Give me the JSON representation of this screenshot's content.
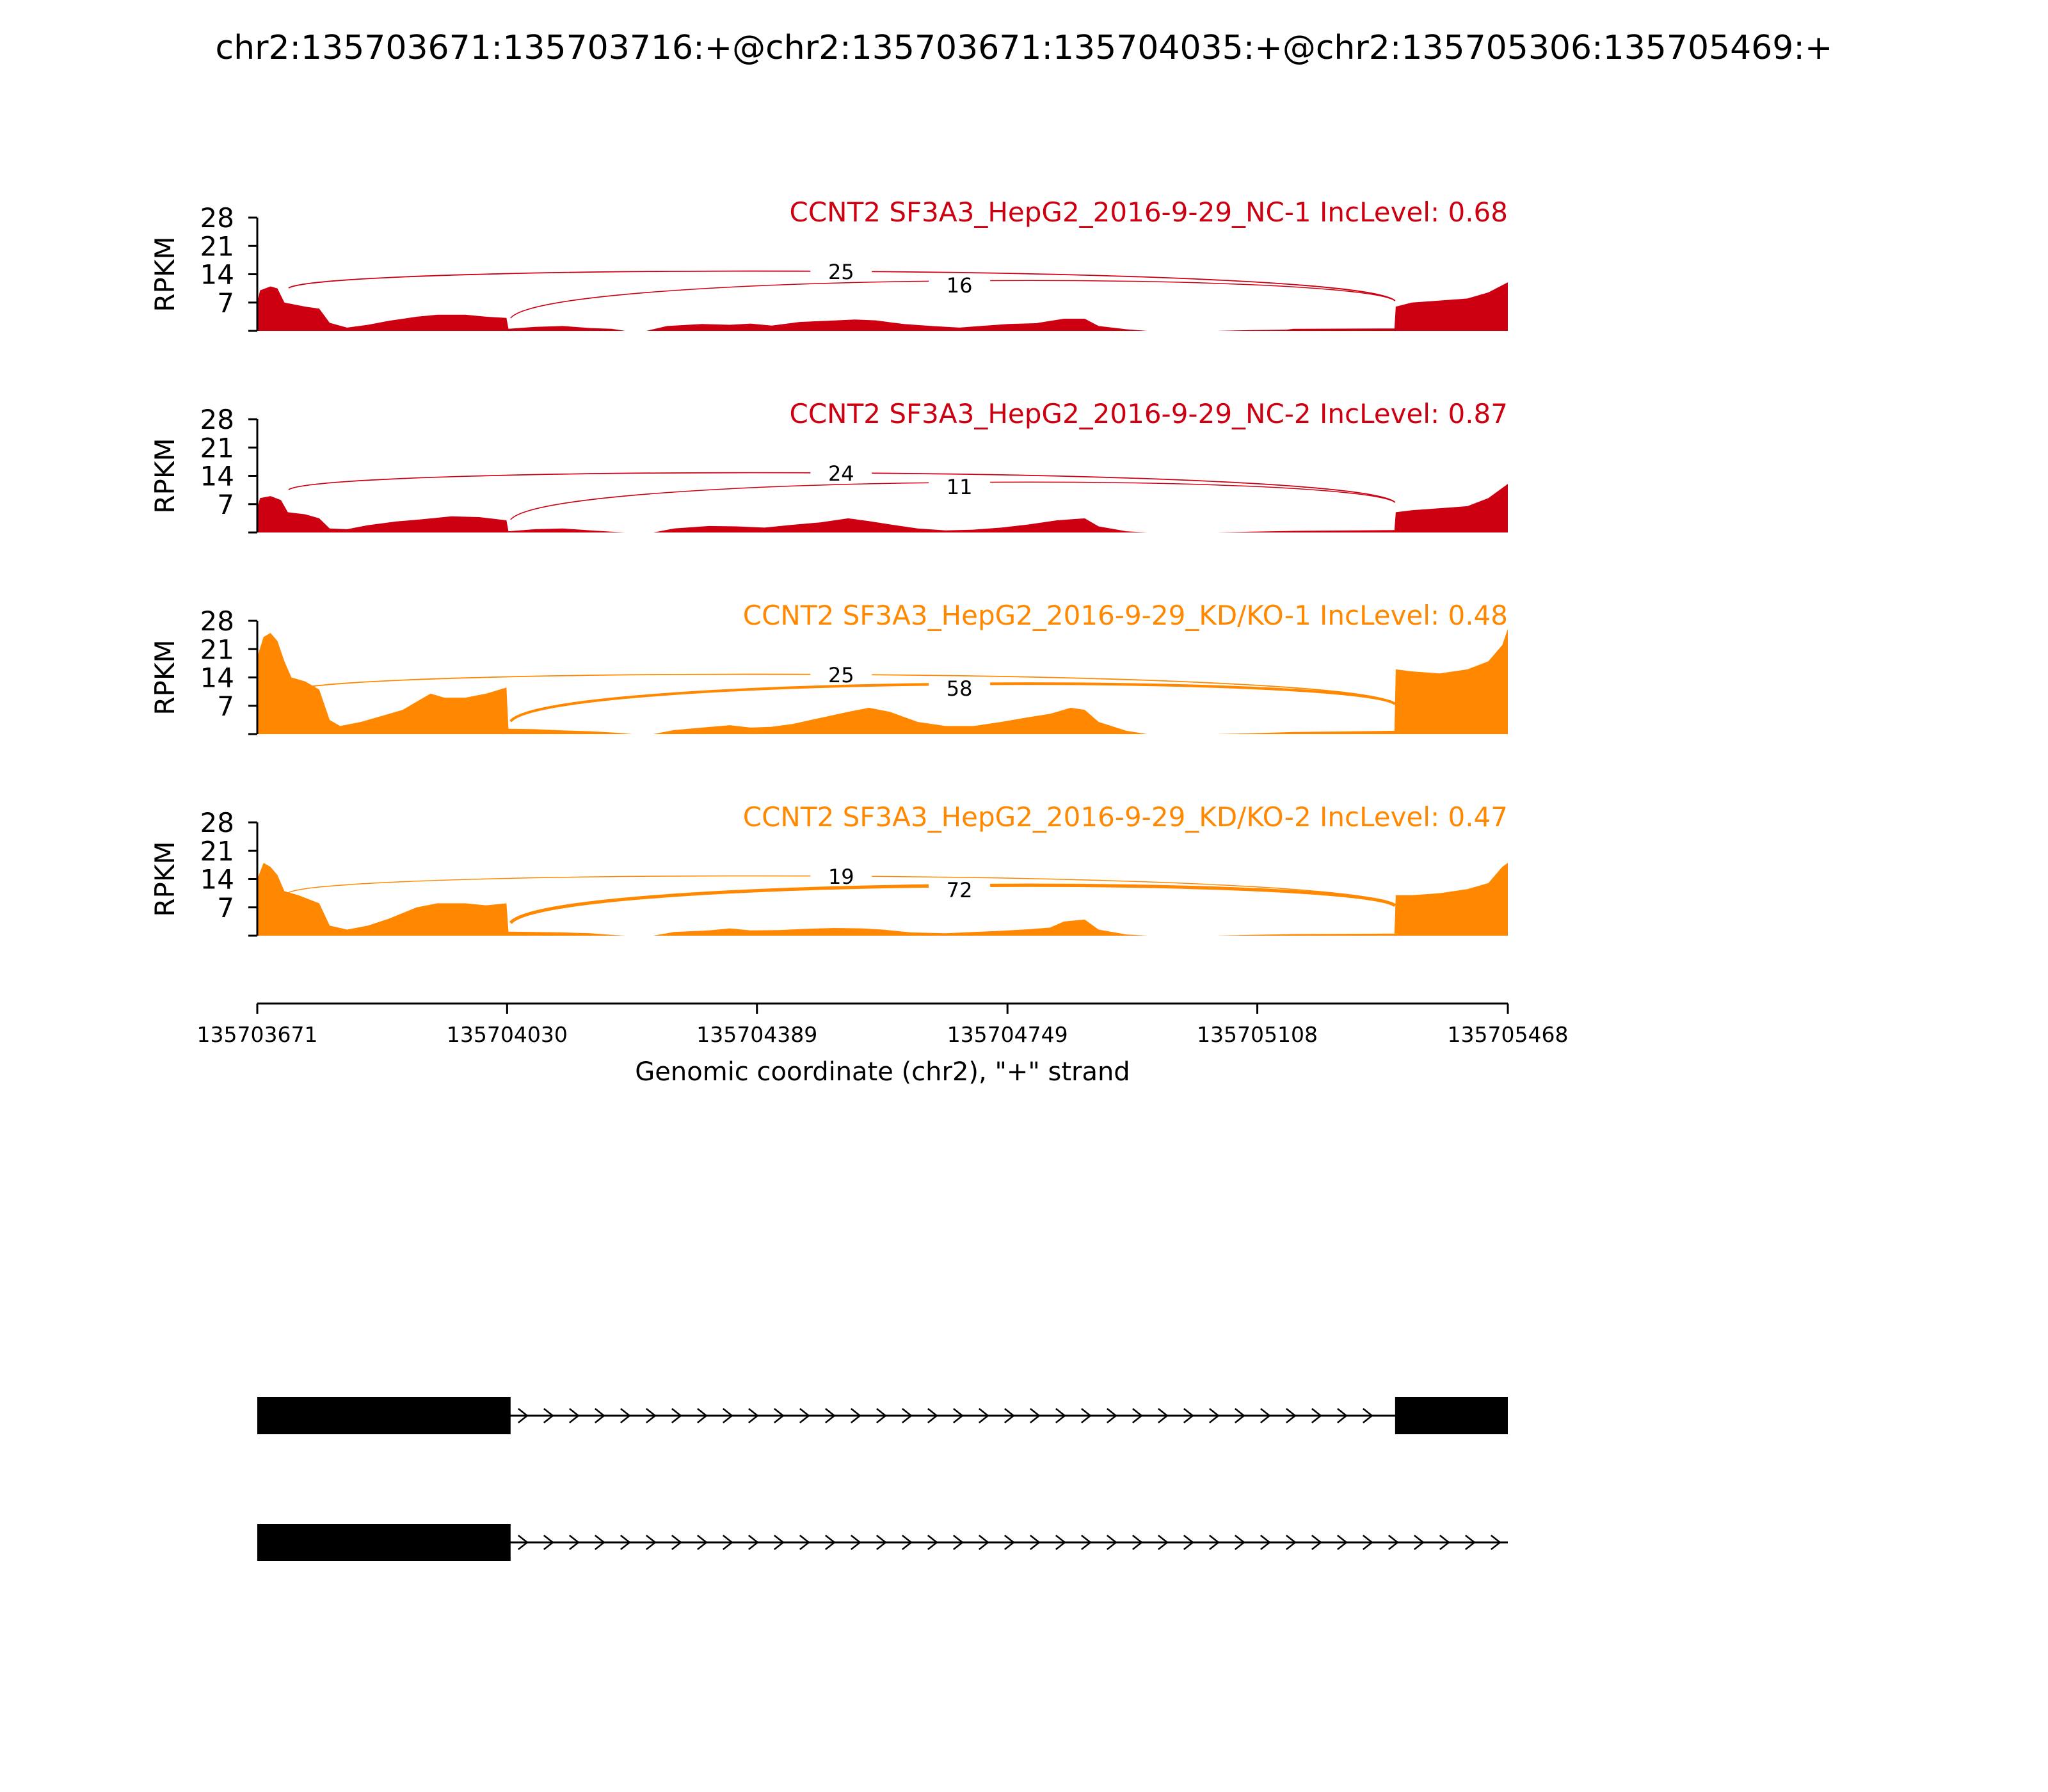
{
  "title": "chr2:135703671:135703716:+@chr2:135703671:135704035:+@chr2:135705306:135705469:+",
  "colors": {
    "nc": "#cc0011",
    "kd": "#ff8800",
    "axis": "#000000",
    "gene": "#000000"
  },
  "chart_data": {
    "type": "area",
    "xlabel": "Genomic coordinate (chr2), \"+\" strand",
    "xlim": [
      135703671,
      135705468
    ],
    "xticks": [
      135703671,
      135704030,
      135704389,
      135704749,
      135705108,
      135705468
    ],
    "xtick_labels": [
      "135703671",
      "135704030",
      "135704389",
      "135704749",
      "135705108",
      "135705468"
    ],
    "ylabel": "RPKM",
    "ylim": [
      0,
      28
    ],
    "yticks": [
      7,
      14,
      21,
      28
    ],
    "ytick_labels": [
      "7",
      "14",
      "21",
      "28"
    ],
    "tracks": [
      {
        "label": "CCNT2 SF3A3_HepG2_2016-9-29_NC-1 IncLevel: 0.68",
        "color_key": "nc",
        "coverage": [
          [
            135703671,
            7
          ],
          [
            135703675,
            10
          ],
          [
            135703690,
            11
          ],
          [
            135703700,
            10.5
          ],
          [
            135703710,
            7
          ],
          [
            135703740,
            6
          ],
          [
            135703760,
            5.5
          ],
          [
            135703775,
            2
          ],
          [
            135703800,
            0.8
          ],
          [
            135703830,
            1.5
          ],
          [
            135703860,
            2.5
          ],
          [
            135703900,
            3.5
          ],
          [
            135703930,
            4
          ],
          [
            135703970,
            4
          ],
          [
            135704000,
            3.5
          ],
          [
            135704029,
            3.2
          ],
          [
            135704032,
            0.5
          ],
          [
            135704070,
            1
          ],
          [
            135704110,
            1.2
          ],
          [
            135704150,
            0.7
          ],
          [
            135704180,
            0.5
          ],
          [
            135704200,
            0
          ],
          [
            135704230,
            0
          ],
          [
            135704260,
            1.2
          ],
          [
            135704310,
            1.7
          ],
          [
            135704350,
            1.5
          ],
          [
            135704380,
            1.8
          ],
          [
            135704410,
            1.3
          ],
          [
            135704450,
            2.2
          ],
          [
            135704490,
            2.5
          ],
          [
            135704530,
            2.8
          ],
          [
            135704560,
            2.6
          ],
          [
            135704600,
            1.7
          ],
          [
            135704640,
            1.2
          ],
          [
            135704680,
            0.8
          ],
          [
            135704710,
            1.2
          ],
          [
            135704750,
            1.7
          ],
          [
            135704790,
            1.9
          ],
          [
            135704830,
            3
          ],
          [
            135704860,
            3
          ],
          [
            135704880,
            1.2
          ],
          [
            135704920,
            0.4
          ],
          [
            135704950,
            0
          ],
          [
            135705000,
            0
          ],
          [
            135705050,
            0
          ],
          [
            135705100,
            0.2
          ],
          [
            135705150,
            0.3
          ],
          [
            135705160,
            0.5
          ],
          [
            135705305,
            0.6
          ],
          [
            135705307,
            6
          ],
          [
            135705330,
            7
          ],
          [
            135705370,
            7.5
          ],
          [
            135705410,
            8
          ],
          [
            135705440,
            9.5
          ],
          [
            135705468,
            12
          ]
        ],
        "junctions": [
          {
            "from": 135703716,
            "to": 135705306,
            "count": 25
          },
          {
            "from": 135704035,
            "to": 135705306,
            "count": 16
          }
        ]
      },
      {
        "label": "CCNT2 SF3A3_HepG2_2016-9-29_NC-2 IncLevel: 0.87",
        "color_key": "nc",
        "coverage": [
          [
            135703671,
            6
          ],
          [
            135703675,
            8.5
          ],
          [
            135703690,
            9
          ],
          [
            135703705,
            8
          ],
          [
            135703715,
            5
          ],
          [
            135703740,
            4.5
          ],
          [
            135703760,
            3.5
          ],
          [
            135703775,
            1
          ],
          [
            135703800,
            0.8
          ],
          [
            135703830,
            1.8
          ],
          [
            135703870,
            2.7
          ],
          [
            135703910,
            3.3
          ],
          [
            135703950,
            4
          ],
          [
            135703990,
            3.8
          ],
          [
            135704029,
            3
          ],
          [
            135704032,
            0.3
          ],
          [
            135704070,
            0.8
          ],
          [
            135704110,
            1
          ],
          [
            135704150,
            0.5
          ],
          [
            135704180,
            0.2
          ],
          [
            135704200,
            0
          ],
          [
            135704240,
            0
          ],
          [
            135704270,
            1
          ],
          [
            135704320,
            1.6
          ],
          [
            135704360,
            1.5
          ],
          [
            135704400,
            1.2
          ],
          [
            135704440,
            1.9
          ],
          [
            135704480,
            2.5
          ],
          [
            135704520,
            3.5
          ],
          [
            135704550,
            2.8
          ],
          [
            135704580,
            2
          ],
          [
            135704620,
            1
          ],
          [
            135704660,
            0.5
          ],
          [
            135704700,
            0.7
          ],
          [
            135704740,
            1.2
          ],
          [
            135704780,
            2
          ],
          [
            135704820,
            3
          ],
          [
            135704860,
            3.5
          ],
          [
            135704880,
            1.5
          ],
          [
            135704920,
            0.3
          ],
          [
            135704950,
            0
          ],
          [
            135705050,
            0
          ],
          [
            135705100,
            0.2
          ],
          [
            135705160,
            0.4
          ],
          [
            135705305,
            0.6
          ],
          [
            135705307,
            5
          ],
          [
            135705330,
            5.5
          ],
          [
            135705370,
            6
          ],
          [
            135705410,
            6.5
          ],
          [
            135705440,
            8.5
          ],
          [
            135705468,
            12
          ]
        ],
        "junctions": [
          {
            "from": 135703716,
            "to": 135705306,
            "count": 24
          },
          {
            "from": 135704035,
            "to": 135705306,
            "count": 11
          }
        ]
      },
      {
        "label": "CCNT2 SF3A3_HepG2_2016-9-29_KD/KO-1 IncLevel: 0.48",
        "color_key": "kd",
        "coverage": [
          [
            135703671,
            19
          ],
          [
            135703680,
            24
          ],
          [
            135703690,
            25
          ],
          [
            135703700,
            23
          ],
          [
            135703710,
            18
          ],
          [
            135703720,
            14
          ],
          [
            135703740,
            13
          ],
          [
            135703760,
            11
          ],
          [
            135703775,
            3.5
          ],
          [
            135703790,
            2
          ],
          [
            135703820,
            3
          ],
          [
            135703850,
            4.5
          ],
          [
            135703880,
            6
          ],
          [
            135703900,
            8
          ],
          [
            135703920,
            10
          ],
          [
            135703940,
            9
          ],
          [
            135703970,
            9
          ],
          [
            135704000,
            10
          ],
          [
            135704029,
            11.5
          ],
          [
            135704032,
            1.3
          ],
          [
            135704070,
            1.2
          ],
          [
            135704110,
            0.9
          ],
          [
            135704150,
            0.7
          ],
          [
            135704190,
            0.3
          ],
          [
            135704210,
            0
          ],
          [
            135704240,
            0
          ],
          [
            135704270,
            1
          ],
          [
            135704310,
            1.6
          ],
          [
            135704350,
            2.2
          ],
          [
            135704380,
            1.6
          ],
          [
            135704410,
            1.8
          ],
          [
            135704440,
            2.5
          ],
          [
            135704480,
            4
          ],
          [
            135704520,
            5.5
          ],
          [
            135704550,
            6.5
          ],
          [
            135704580,
            5.5
          ],
          [
            135704620,
            3
          ],
          [
            135704660,
            2
          ],
          [
            135704700,
            2
          ],
          [
            135704740,
            3
          ],
          [
            135704780,
            4.2
          ],
          [
            135704810,
            5
          ],
          [
            135704840,
            6.5
          ],
          [
            135704860,
            6
          ],
          [
            135704880,
            3
          ],
          [
            135704920,
            0.8
          ],
          [
            135704950,
            0
          ],
          [
            135705050,
            0
          ],
          [
            135705100,
            0.2
          ],
          [
            135705160,
            0.5
          ],
          [
            135705305,
            0.8
          ],
          [
            135705307,
            16
          ],
          [
            135705330,
            15.5
          ],
          [
            135705370,
            15
          ],
          [
            135705410,
            16
          ],
          [
            135705440,
            18
          ],
          [
            135705460,
            22
          ],
          [
            135705468,
            26
          ]
        ],
        "junctions": [
          {
            "from": 135703716,
            "to": 135705306,
            "count": 25
          },
          {
            "from": 135704035,
            "to": 135705306,
            "count": 58
          }
        ]
      },
      {
        "label": "CCNT2 SF3A3_HepG2_2016-9-29_KD/KO-2 IncLevel: 0.47",
        "color_key": "kd",
        "coverage": [
          [
            135703671,
            14
          ],
          [
            135703680,
            18
          ],
          [
            135703690,
            17
          ],
          [
            135703700,
            15
          ],
          [
            135703710,
            11
          ],
          [
            135703730,
            10
          ],
          [
            135703760,
            8
          ],
          [
            135703775,
            2.5
          ],
          [
            135703800,
            1.5
          ],
          [
            135703830,
            2.5
          ],
          [
            135703860,
            4.2
          ],
          [
            135703900,
            7
          ],
          [
            135703930,
            8
          ],
          [
            135703970,
            8
          ],
          [
            135704000,
            7.5
          ],
          [
            135704029,
            8
          ],
          [
            135704032,
            1
          ],
          [
            135704070,
            0.9
          ],
          [
            135704110,
            0.8
          ],
          [
            135704150,
            0.6
          ],
          [
            135704180,
            0.2
          ],
          [
            135704200,
            0
          ],
          [
            135704240,
            0
          ],
          [
            135704270,
            0.9
          ],
          [
            135704320,
            1.3
          ],
          [
            135704350,
            1.8
          ],
          [
            135704380,
            1.3
          ],
          [
            135704420,
            1.4
          ],
          [
            135704460,
            1.7
          ],
          [
            135704500,
            1.9
          ],
          [
            135704540,
            1.8
          ],
          [
            135704570,
            1.5
          ],
          [
            135704610,
            0.8
          ],
          [
            135704660,
            0.6
          ],
          [
            135704700,
            0.9
          ],
          [
            135704740,
            1.2
          ],
          [
            135704780,
            1.6
          ],
          [
            135704810,
            2
          ],
          [
            135704830,
            3.5
          ],
          [
            135704860,
            4
          ],
          [
            135704880,
            1.5
          ],
          [
            135704920,
            0.3
          ],
          [
            135704950,
            0
          ],
          [
            135705050,
            0
          ],
          [
            135705100,
            0.2
          ],
          [
            135705160,
            0.4
          ],
          [
            135705305,
            0.5
          ],
          [
            135705307,
            10
          ],
          [
            135705330,
            10
          ],
          [
            135705370,
            10.5
          ],
          [
            135705410,
            11.5
          ],
          [
            135705440,
            13
          ],
          [
            135705460,
            17
          ],
          [
            135705468,
            18
          ]
        ],
        "junctions": [
          {
            "from": 135703716,
            "to": 135705306,
            "count": 19
          },
          {
            "from": 135704035,
            "to": 135705306,
            "count": 72
          }
        ]
      }
    ],
    "gene_models": [
      {
        "exons": [
          [
            135703671,
            135704035
          ],
          [
            135705306,
            135705469
          ]
        ],
        "strand": "+"
      },
      {
        "exons": [
          [
            135703671,
            135704035
          ]
        ],
        "strand": "+",
        "line_end": 135705468
      }
    ]
  }
}
